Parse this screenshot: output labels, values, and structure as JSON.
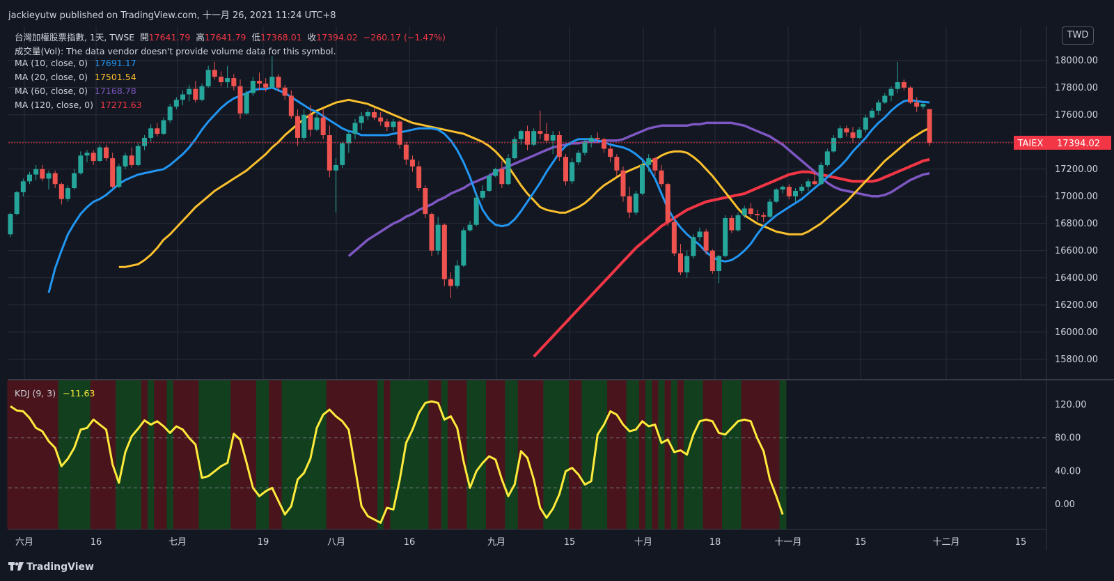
{
  "header": {
    "publisher": "jackieyutw published on TradingView.com, 十一月 26, 2021 11:24 UTC+8"
  },
  "legend": {
    "symbol": "台灣加權股票指數, 1天, TWSE",
    "open_label": "開",
    "open": "17641.79",
    "high_label": "高",
    "high": "17641.79",
    "low_label": "低",
    "low": "17368.01",
    "close_label": "收",
    "close": "17394.02",
    "change": "−260.17 (−1.47%)",
    "vol": "成交量(Vol): The data vendor doesn't provide volume data for this symbol.",
    "ma": [
      {
        "label": "MA (10, close, 0)",
        "value": "17691.17",
        "color": "#2196f3"
      },
      {
        "label": "MA (20, close, 0)",
        "value": "17501.54",
        "color": "#fbc02d"
      },
      {
        "label": "MA (60, close, 0)",
        "value": "17168.78",
        "color": "#7e57c2"
      },
      {
        "label": "MA (120, close, 0)",
        "value": "17271.63",
        "color": "#f23645"
      }
    ],
    "kdj_label": "KDJ (9, 3)",
    "kdj_value": "−11.63"
  },
  "currency": "TWD",
  "price_tag": {
    "symbol": "TAIEX",
    "value": "17394.02"
  },
  "brand": "TradingView",
  "colors": {
    "up": "#26a69a",
    "down": "#ef5350",
    "bg": "#131722",
    "grid": "#2a2e39",
    "kdj": "#ffeb3b"
  },
  "chart_data": {
    "type": "candlestick",
    "price_axis": {
      "ticks": [
        "15800.00",
        "16000.00",
        "16200.00",
        "16400.00",
        "16600.00",
        "16800.00",
        "17000.00",
        "17200.00",
        "17400.00",
        "17600.00",
        "17800.00",
        "18000.00"
      ],
      "range": [
        15650,
        18250
      ]
    },
    "kdj_axis": {
      "ticks": [
        "0.00",
        "40.00",
        "80.00",
        "120.00"
      ],
      "range": [
        -30,
        150
      ],
      "dashed_levels": [
        20,
        80
      ]
    },
    "x_labels": [
      "六月",
      "16",
      "七月",
      "19",
      "八月",
      "16",
      "九月",
      "15",
      "十月",
      "18",
      "十一月",
      "15",
      "十二月",
      "15"
    ],
    "candles": [
      [
        16720,
        16880,
        16700,
        16870
      ],
      [
        16870,
        17040,
        16860,
        17030
      ],
      [
        17030,
        17130,
        17000,
        17110
      ],
      [
        17110,
        17180,
        17090,
        17160
      ],
      [
        17160,
        17230,
        17120,
        17200
      ],
      [
        17200,
        17230,
        17110,
        17130
      ],
      [
        17130,
        17190,
        17050,
        17170
      ],
      [
        17170,
        17190,
        17060,
        17090
      ],
      [
        17090,
        17100,
        16940,
        16980
      ],
      [
        16980,
        17080,
        16960,
        17060
      ],
      [
        17060,
        17200,
        17050,
        17170
      ],
      [
        17170,
        17330,
        17160,
        17300
      ],
      [
        17300,
        17340,
        17250,
        17320
      ],
      [
        17320,
        17340,
        17230,
        17260
      ],
      [
        17260,
        17380,
        17250,
        17360
      ],
      [
        17360,
        17380,
        17260,
        17280
      ],
      [
        17280,
        17320,
        17060,
        17070
      ],
      [
        17070,
        17240,
        17060,
        17220
      ],
      [
        17220,
        17320,
        17200,
        17300
      ],
      [
        17300,
        17360,
        17210,
        17230
      ],
      [
        17230,
        17390,
        17220,
        17370
      ],
      [
        17370,
        17450,
        17340,
        17430
      ],
      [
        17430,
        17530,
        17400,
        17500
      ],
      [
        17500,
        17540,
        17440,
        17460
      ],
      [
        17460,
        17580,
        17450,
        17560
      ],
      [
        17560,
        17680,
        17540,
        17660
      ],
      [
        17660,
        17730,
        17640,
        17710
      ],
      [
        17710,
        17780,
        17670,
        17750
      ],
      [
        17750,
        17820,
        17700,
        17790
      ],
      [
        17790,
        17850,
        17690,
        17710
      ],
      [
        17710,
        17830,
        17700,
        17810
      ],
      [
        17810,
        17960,
        17800,
        17930
      ],
      [
        17930,
        17990,
        17860,
        17880
      ],
      [
        17880,
        17920,
        17810,
        17840
      ],
      [
        17840,
        17960,
        17800,
        17870
      ],
      [
        17870,
        17900,
        17780,
        17810
      ],
      [
        17810,
        17860,
        17570,
        17610
      ],
      [
        17610,
        17780,
        17600,
        17760
      ],
      [
        17760,
        17880,
        17740,
        17850
      ],
      [
        17850,
        17910,
        17780,
        17830
      ],
      [
        17830,
        17870,
        17770,
        17800
      ],
      [
        17800,
        18030,
        17790,
        17880
      ],
      [
        17880,
        17900,
        17770,
        17800
      ],
      [
        17800,
        17820,
        17710,
        17740
      ],
      [
        17740,
        17780,
        17570,
        17590
      ],
      [
        17590,
        17640,
        17370,
        17430
      ],
      [
        17430,
        17640,
        17410,
        17600
      ],
      [
        17600,
        17670,
        17440,
        17490
      ],
      [
        17490,
        17610,
        17480,
        17580
      ],
      [
        17580,
        17640,
        17420,
        17450
      ],
      [
        17450,
        17520,
        17140,
        17190
      ],
      [
        17190,
        17280,
        16880,
        17230
      ],
      [
        17230,
        17400,
        17210,
        17390
      ],
      [
        17390,
        17490,
        17320,
        17460
      ],
      [
        17460,
        17570,
        17420,
        17540
      ],
      [
        17540,
        17620,
        17490,
        17590
      ],
      [
        17590,
        17640,
        17560,
        17620
      ],
      [
        17620,
        17650,
        17560,
        17580
      ],
      [
        17580,
        17620,
        17520,
        17550
      ],
      [
        17550,
        17570,
        17480,
        17510
      ],
      [
        17510,
        17570,
        17480,
        17550
      ],
      [
        17550,
        17560,
        17350,
        17380
      ],
      [
        17380,
        17400,
        17230,
        17270
      ],
      [
        17270,
        17300,
        17180,
        17220
      ],
      [
        17220,
        17260,
        17040,
        17060
      ],
      [
        17060,
        17080,
        16840,
        16870
      ],
      [
        16870,
        16880,
        16560,
        16600
      ],
      [
        16600,
        16850,
        16570,
        16790
      ],
      [
        16790,
        16800,
        16340,
        16390
      ],
      [
        16390,
        16440,
        16250,
        16340
      ],
      [
        16340,
        16530,
        16320,
        16490
      ],
      [
        16490,
        16770,
        16480,
        16750
      ],
      [
        16750,
        16820,
        16740,
        16790
      ],
      [
        16790,
        17020,
        16780,
        16990
      ],
      [
        16990,
        17080,
        16970,
        17040
      ],
      [
        17040,
        17170,
        17030,
        17150
      ],
      [
        17150,
        17210,
        17140,
        17200
      ],
      [
        17200,
        17260,
        17060,
        17090
      ],
      [
        17090,
        17310,
        17080,
        17280
      ],
      [
        17280,
        17440,
        17270,
        17420
      ],
      [
        17420,
        17490,
        17380,
        17480
      ],
      [
        17480,
        17520,
        17340,
        17380
      ],
      [
        17380,
        17500,
        17370,
        17480
      ],
      [
        17480,
        17630,
        17420,
        17460
      ],
      [
        17460,
        17540,
        17390,
        17410
      ],
      [
        17410,
        17480,
        17310,
        17450
      ],
      [
        17450,
        17480,
        17260,
        17290
      ],
      [
        17290,
        17310,
        17080,
        17110
      ],
      [
        17110,
        17280,
        17090,
        17250
      ],
      [
        17250,
        17340,
        17230,
        17320
      ],
      [
        17320,
        17420,
        17300,
        17400
      ],
      [
        17400,
        17450,
        17360,
        17430
      ],
      [
        17430,
        17470,
        17400,
        17420
      ],
      [
        17420,
        17430,
        17320,
        17350
      ],
      [
        17350,
        17370,
        17250,
        17290
      ],
      [
        17290,
        17310,
        17150,
        17190
      ],
      [
        17190,
        17220,
        16960,
        17000
      ],
      [
        17000,
        17070,
        16840,
        16880
      ],
      [
        16880,
        17040,
        16860,
        17020
      ],
      [
        17020,
        17260,
        17010,
        17230
      ],
      [
        17230,
        17310,
        17180,
        17280
      ],
      [
        17280,
        17290,
        17150,
        17190
      ],
      [
        17190,
        17230,
        17070,
        17090
      ],
      [
        17090,
        17100,
        16780,
        16810
      ],
      [
        16810,
        16850,
        16560,
        16580
      ],
      [
        16580,
        16650,
        16420,
        16440
      ],
      [
        16440,
        16600,
        16400,
        16560
      ],
      [
        16560,
        16720,
        16540,
        16700
      ],
      [
        16700,
        16770,
        16670,
        16740
      ],
      [
        16740,
        16760,
        16570,
        16600
      ],
      [
        16600,
        16610,
        16430,
        16450
      ],
      [
        16450,
        16570,
        16360,
        16560
      ],
      [
        16560,
        16860,
        16550,
        16840
      ],
      [
        16840,
        16860,
        16730,
        16750
      ],
      [
        16750,
        16880,
        16740,
        16860
      ],
      [
        16860,
        16930,
        16840,
        16910
      ],
      [
        16910,
        16950,
        16850,
        16870
      ],
      [
        16870,
        16900,
        16820,
        16860
      ],
      [
        16860,
        16880,
        16810,
        16850
      ],
      [
        16850,
        16980,
        16840,
        16960
      ],
      [
        16960,
        17060,
        16950,
        17050
      ],
      [
        17050,
        17080,
        17020,
        17070
      ],
      [
        17070,
        17090,
        16980,
        17000
      ],
      [
        17000,
        17060,
        16960,
        17040
      ],
      [
        17040,
        17090,
        17020,
        17070
      ],
      [
        17070,
        17130,
        17040,
        17110
      ],
      [
        17110,
        17180,
        17080,
        17090
      ],
      [
        17090,
        17250,
        17080,
        17230
      ],
      [
        17230,
        17350,
        17220,
        17330
      ],
      [
        17330,
        17450,
        17320,
        17430
      ],
      [
        17430,
        17520,
        17420,
        17500
      ],
      [
        17500,
        17520,
        17440,
        17470
      ],
      [
        17470,
        17510,
        17400,
        17430
      ],
      [
        17430,
        17510,
        17420,
        17490
      ],
      [
        17490,
        17600,
        17470,
        17580
      ],
      [
        17580,
        17650,
        17570,
        17630
      ],
      [
        17630,
        17710,
        17600,
        17690
      ],
      [
        17690,
        17760,
        17680,
        17740
      ],
      [
        17740,
        17810,
        17700,
        17790
      ],
      [
        17790,
        17990,
        17760,
        17840
      ],
      [
        17840,
        17860,
        17780,
        17800
      ],
      [
        17800,
        17810,
        17680,
        17690
      ],
      [
        17690,
        17730,
        17620,
        17660
      ],
      [
        17660,
        17690,
        17640,
        17680
      ],
      [
        17641.79,
        17641.79,
        17368.01,
        17394.02
      ]
    ],
    "ma10": [
      16290,
      16470,
      16600,
      16720,
      16800,
      16870,
      16920,
      16960,
      16980,
      17010,
      17050,
      17090,
      17120,
      17140,
      17160,
      17170,
      17180,
      17190,
      17200,
      17230,
      17270,
      17310,
      17360,
      17420,
      17490,
      17550,
      17600,
      17650,
      17690,
      17720,
      17740,
      17760,
      17780,
      17790,
      17790,
      17800,
      17780,
      17760,
      17730,
      17700,
      17670,
      17640,
      17620,
      17590,
      17560,
      17530,
      17500,
      17480,
      17470,
      17450,
      17450,
      17450,
      17450,
      17450,
      17460,
      17470,
      17480,
      17490,
      17500,
      17500,
      17500,
      17490,
      17460,
      17410,
      17340,
      17250,
      17140,
      17010,
      16900,
      16830,
      16790,
      16780,
      16790,
      16830,
      16890,
      16960,
      17030,
      17100,
      17180,
      17250,
      17320,
      17370,
      17400,
      17420,
      17420,
      17420,
      17410,
      17400,
      17380,
      17370,
      17360,
      17340,
      17310,
      17270,
      17210,
      17130,
      17020,
      16910,
      16830,
      16770,
      16720,
      16680,
      16640,
      16590,
      16550,
      16530,
      16520,
      16530,
      16560,
      16600,
      16650,
      16720,
      16780,
      16820,
      16860,
      16890,
      16920,
      16950,
      16980,
      17020,
      17060,
      17100,
      17140,
      17180,
      17220,
      17270,
      17330,
      17380,
      17430,
      17490,
      17540,
      17580,
      17630,
      17670,
      17700,
      17710,
      17700,
      17695,
      17691.17
    ],
    "ma20": [
      16480,
      16480,
      16490,
      16500,
      16530,
      16570,
      16620,
      16680,
      16720,
      16770,
      16820,
      16870,
      16920,
      16960,
      17000,
      17040,
      17070,
      17100,
      17130,
      17160,
      17190,
      17230,
      17270,
      17310,
      17360,
      17400,
      17450,
      17490,
      17530,
      17570,
      17600,
      17630,
      17650,
      17670,
      17690,
      17700,
      17710,
      17700,
      17690,
      17680,
      17660,
      17640,
      17620,
      17600,
      17580,
      17560,
      17540,
      17530,
      17520,
      17510,
      17500,
      17490,
      17480,
      17470,
      17460,
      17440,
      17420,
      17400,
      17370,
      17330,
      17280,
      17220,
      17150,
      17080,
      17020,
      16970,
      16920,
      16900,
      16890,
      16880,
      16880,
      16900,
      16920,
      16950,
      16990,
      17040,
      17080,
      17110,
      17140,
      17170,
      17190,
      17210,
      17230,
      17250,
      17270,
      17300,
      17320,
      17330,
      17330,
      17320,
      17290,
      17250,
      17200,
      17150,
      17090,
      17030,
      16970,
      16910,
      16860,
      16830,
      16800,
      16780,
      16760,
      16740,
      16730,
      16720,
      16720,
      16720,
      16740,
      16770,
      16800,
      16840,
      16880,
      16920,
      16960,
      17010,
      17060,
      17110,
      17160,
      17210,
      17260,
      17300,
      17340,
      17380,
      17420,
      17450,
      17480,
      17501.54
    ],
    "ma60": [
      16560,
      16600,
      16640,
      16680,
      16710,
      16740,
      16770,
      16800,
      16820,
      16850,
      16870,
      16900,
      16920,
      16940,
      16970,
      16990,
      17020,
      17040,
      17060,
      17090,
      17110,
      17130,
      17150,
      17180,
      17200,
      17220,
      17240,
      17260,
      17280,
      17300,
      17320,
      17340,
      17360,
      17370,
      17380,
      17390,
      17390,
      17400,
      17400,
      17400,
      17410,
      17410,
      17410,
      17420,
      17440,
      17460,
      17480,
      17500,
      17510,
      17520,
      17520,
      17520,
      17520,
      17520,
      17530,
      17530,
      17540,
      17540,
      17540,
      17540,
      17540,
      17530,
      17520,
      17500,
      17480,
      17460,
      17440,
      17410,
      17380,
      17340,
      17300,
      17260,
      17220,
      17180,
      17140,
      17100,
      17070,
      17050,
      17040,
      17030,
      17020,
      17010,
      17000,
      17000,
      17010,
      17030,
      17060,
      17090,
      17120,
      17140,
      17160,
      17168.78
    ],
    "ma120": [
      15820,
      15870,
      15920,
      15970,
      16020,
      16070,
      16120,
      16170,
      16220,
      16270,
      16320,
      16370,
      16420,
      16470,
      16520,
      16570,
      16620,
      16660,
      16700,
      16740,
      16780,
      16810,
      16840,
      16870,
      16900,
      16920,
      16940,
      16960,
      16970,
      16980,
      16990,
      17000,
      17010,
      17020,
      17040,
      17060,
      17080,
      17100,
      17120,
      17140,
      17160,
      17170,
      17180,
      17180,
      17170,
      17160,
      17150,
      17140,
      17130,
      17120,
      17110,
      17110,
      17110,
      17110,
      17120,
      17140,
      17160,
      17180,
      17200,
      17220,
      17240,
      17260,
      17271.63
    ],
    "kdj": [
      118,
      113,
      112,
      104,
      92,
      88,
      76,
      68,
      46,
      55,
      68,
      90,
      92,
      102,
      96,
      90,
      48,
      26,
      63,
      82,
      91,
      101,
      96,
      100,
      94,
      86,
      94,
      90,
      80,
      72,
      32,
      34,
      40,
      46,
      50,
      85,
      78,
      50,
      20,
      10,
      16,
      20,
      4,
      -12,
      -2,
      30,
      38,
      55,
      92,
      108,
      114,
      106,
      100,
      90,
      44,
      -2,
      -14,
      -18,
      -22,
      -4,
      -6,
      30,
      74,
      90,
      110,
      122,
      124,
      122,
      102,
      106,
      92,
      52,
      20,
      40,
      50,
      58,
      54,
      30,
      10,
      24,
      64,
      56,
      30,
      -4,
      -16,
      -5,
      12,
      40,
      44,
      36,
      24,
      28,
      84,
      96,
      112,
      108,
      96,
      88,
      90,
      100,
      94,
      96,
      74,
      78,
      63,
      65,
      60,
      84,
      100,
      102,
      100,
      86,
      84,
      92,
      100,
      102,
      100,
      80,
      64,
      30,
      10,
      -12
    ]
  }
}
